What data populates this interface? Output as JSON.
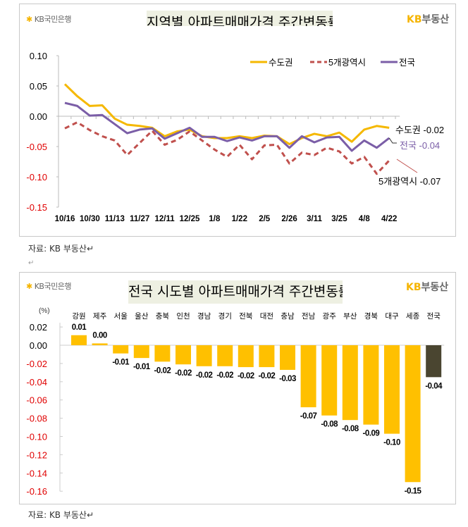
{
  "top_panel": {
    "logo_text": "KB국민은행",
    "brand_text": "KB부동산",
    "brand_kb": "KB",
    "brand_name": "부동산",
    "title": "지역별 아파트매매가격 주간변동률",
    "source": "자료: KB 부동산↵",
    "paragraph_mark": "↵"
  },
  "bottom_panel": {
    "logo_text": "KB국민은행",
    "brand_kb": "KB",
    "brand_name": "부동산",
    "title": "전국 시도별 아파트매매가격 주간변동률",
    "unit": "(%)",
    "source": "자료: KB 부동산↵"
  },
  "colors": {
    "capital": "#f5b800",
    "five_metro": "#c0504d",
    "national": "#7b5ea7",
    "bar": "#ffc000",
    "bar_national": "#4a4530",
    "negative_tick": "#e00000"
  },
  "chart_data": [
    {
      "type": "line",
      "title": "지역별 아파트매매가격 주간변동률",
      "x_tick_labels": [
        "10/16",
        "10/30",
        "11/13",
        "11/27",
        "12/11",
        "12/25",
        "1/8",
        "1/22",
        "2/5",
        "2/26",
        "3/11",
        "3/25",
        "4/8",
        "4/22"
      ],
      "y_tick_labels": [
        "0.10",
        "0.05",
        "0.00",
        "-0.05",
        "-0.10",
        "-0.15"
      ],
      "ylim": [
        -0.15,
        0.1
      ],
      "grid": false,
      "legend": "top-right",
      "series": [
        {
          "name": "수도권",
          "style": "solid",
          "end_label": "수도권 -0.02",
          "values": [
            0.053,
            0.033,
            0.017,
            0.018,
            -0.004,
            -0.014,
            -0.016,
            -0.019,
            -0.033,
            -0.025,
            -0.022,
            -0.033,
            -0.036,
            -0.036,
            -0.033,
            -0.036,
            -0.032,
            -0.033,
            -0.046,
            -0.036,
            -0.029,
            -0.033,
            -0.027,
            -0.042,
            -0.022,
            -0.016,
            -0.019
          ]
        },
        {
          "name": "5개광역시",
          "style": "dashed",
          "end_label": "5개광역시 -0.07",
          "values": [
            -0.02,
            -0.01,
            -0.023,
            -0.033,
            -0.04,
            -0.064,
            -0.044,
            -0.024,
            -0.047,
            -0.039,
            -0.025,
            -0.04,
            -0.055,
            -0.067,
            -0.047,
            -0.071,
            -0.048,
            -0.047,
            -0.078,
            -0.06,
            -0.064,
            -0.052,
            -0.058,
            -0.078,
            -0.067,
            -0.095,
            -0.073
          ]
        },
        {
          "name": "전국",
          "style": "solid",
          "end_label": "전국 -0.04",
          "values": [
            0.022,
            0.017,
            0.001,
            0.002,
            -0.013,
            -0.028,
            -0.022,
            -0.02,
            -0.037,
            -0.028,
            -0.019,
            -0.034,
            -0.034,
            -0.041,
            -0.035,
            -0.04,
            -0.033,
            -0.033,
            -0.052,
            -0.033,
            -0.043,
            -0.035,
            -0.034,
            -0.057,
            -0.04,
            -0.052,
            -0.036
          ]
        }
      ]
    },
    {
      "type": "bar",
      "title": "전국 시도별 아파트매매가격 주간변동률",
      "ylabel": "(%)",
      "categories": [
        "강원",
        "제주",
        "서울",
        "울산",
        "충북",
        "인천",
        "경남",
        "경기",
        "전북",
        "대전",
        "충남",
        "전남",
        "광주",
        "부산",
        "경북",
        "대구",
        "세종",
        "전국"
      ],
      "values": [
        0.011,
        0.002,
        -0.009,
        -0.014,
        -0.018,
        -0.021,
        -0.023,
        -0.023,
        -0.024,
        -0.024,
        -0.027,
        -0.068,
        -0.077,
        -0.082,
        -0.087,
        -0.097,
        -0.15,
        -0.035
      ],
      "data_labels": [
        "0.01",
        "0.00",
        "-0.01",
        "-0.01",
        "-0.02",
        "-0.02",
        "-0.02",
        "-0.02",
        "-0.02",
        "-0.02",
        "-0.03",
        "-0.07",
        "-0.08",
        "-0.08",
        "-0.09",
        "-0.10",
        "-0.15",
        "-0.04"
      ],
      "y_tick_labels": [
        "0.02",
        "0.00",
        "-0.02",
        "-0.04",
        "-0.06",
        "-0.08",
        "-0.10",
        "-0.12",
        "-0.14",
        "-0.16"
      ],
      "ylim": [
        -0.16,
        0.02
      ],
      "grid": false
    }
  ]
}
